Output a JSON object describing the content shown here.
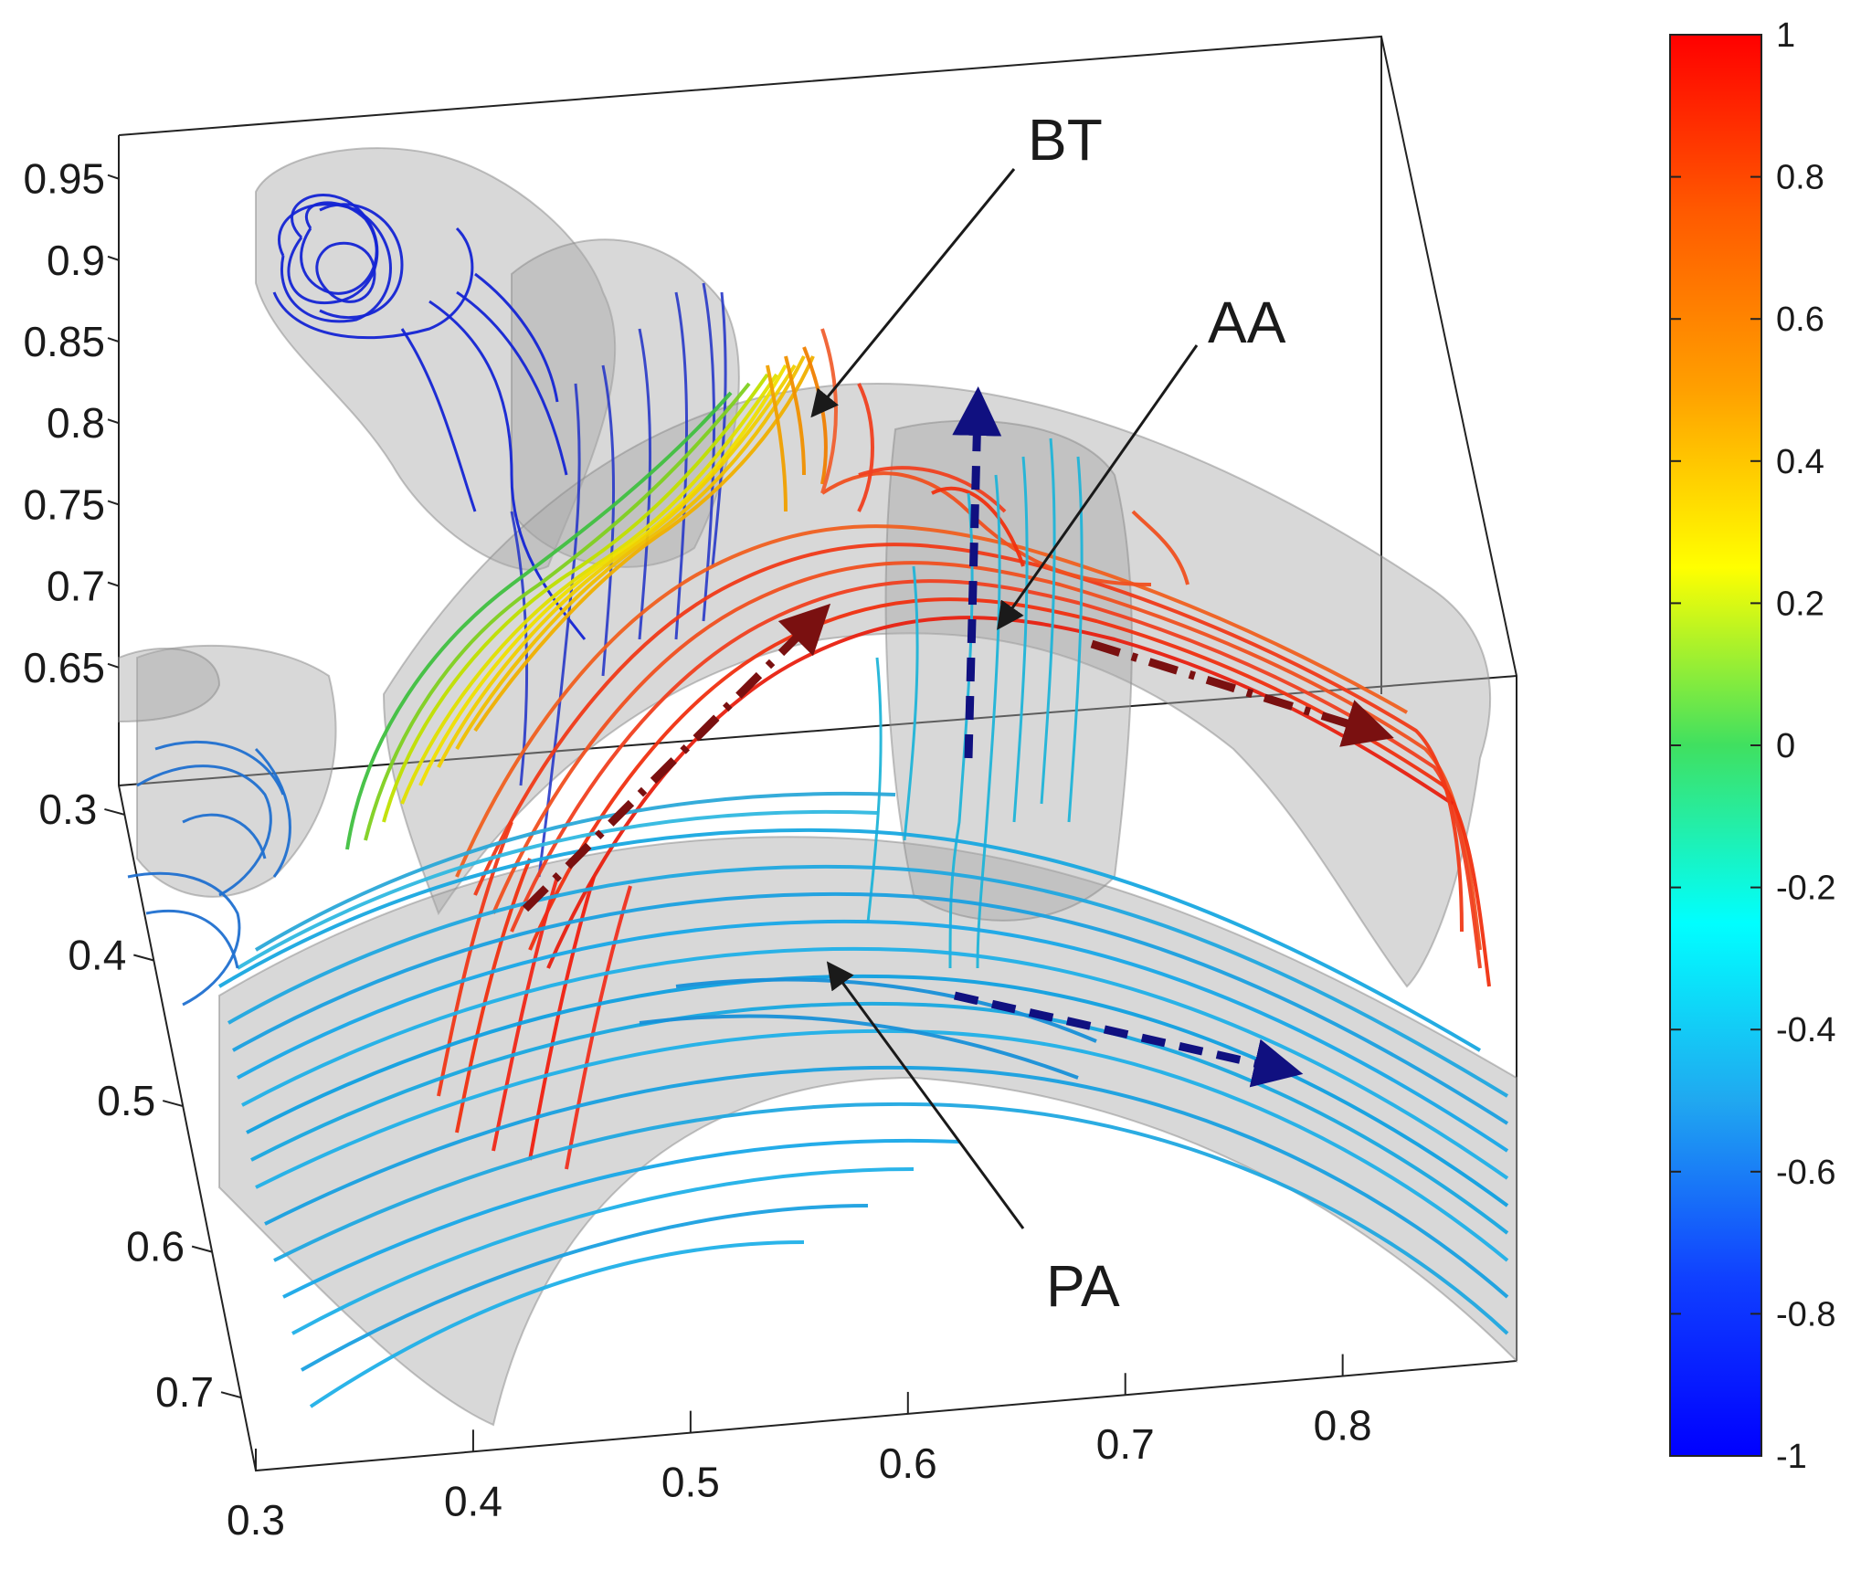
{
  "chart_data": {
    "type": "3d-streamline",
    "title": "",
    "annotations": [
      {
        "label": "BT"
      },
      {
        "label": "AA"
      },
      {
        "label": "PA"
      }
    ],
    "axes": {
      "vertical": {
        "ticks": [
          "0.65",
          "0.7",
          "0.75",
          "0.8",
          "0.85",
          "0.9",
          "0.95"
        ],
        "range": [
          0.6,
          0.97
        ]
      },
      "depth": {
        "ticks": [
          "0.3",
          "0.4",
          "0.5",
          "0.6",
          "0.7"
        ],
        "range": [
          0.28,
          0.75
        ]
      },
      "horizontal": {
        "ticks": [
          "0.3",
          "0.4",
          "0.5",
          "0.6",
          "0.7",
          "0.8"
        ],
        "range": [
          0.3,
          0.88
        ]
      }
    },
    "colorbar": {
      "range": [
        -1,
        1
      ],
      "ticks": [
        "1",
        "0.8",
        "0.6",
        "0.4",
        "0.2",
        "0",
        "-0.2",
        "-0.4",
        "-0.6",
        "-0.8",
        "-1"
      ],
      "colormap": "jet"
    },
    "streamline_groups": [
      {
        "region": "BT",
        "dominant_value": 0.4,
        "color": "#f0d000"
      },
      {
        "region": "AA",
        "dominant_value": 0.9,
        "color": "#f03010"
      },
      {
        "region": "PA",
        "dominant_value": -0.5,
        "color": "#18a8e0"
      },
      {
        "region": "vortex",
        "dominant_value": -1.0,
        "color": "#1020d0"
      }
    ]
  }
}
